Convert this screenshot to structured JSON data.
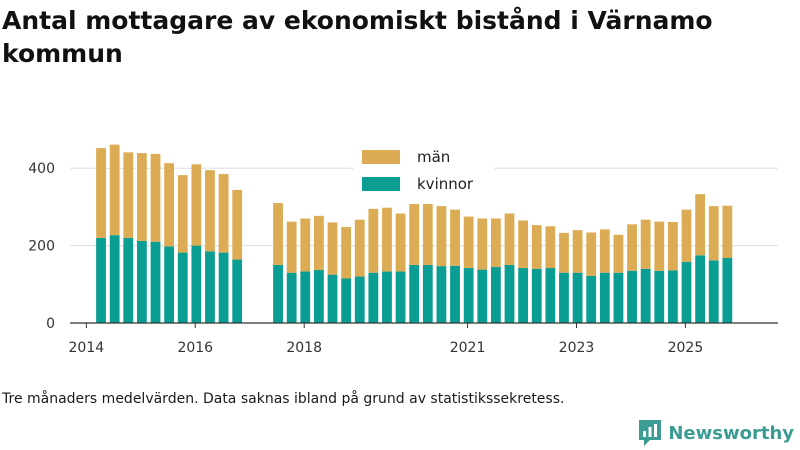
{
  "chart_data": {
    "type": "bar",
    "stacked": true,
    "title": "Antal mottagare av ekonomiskt bistånd i Värnamo kommun",
    "note": "Tre månaders medelvärden. Data saknas ibland på grund av statistikssekretess.",
    "brand": "Newsworthy",
    "ylim": [
      0,
      460
    ],
    "yticks": [
      0,
      200,
      400
    ],
    "xlim": [
      2013.7,
      2026.7
    ],
    "xticks": [
      {
        "value": 2014,
        "label": "2014"
      },
      {
        "value": 2016,
        "label": "2016"
      },
      {
        "value": 2018,
        "label": "2018"
      },
      {
        "value": 2021,
        "label": "2021"
      },
      {
        "value": 2023,
        "label": "2023"
      },
      {
        "value": 2025,
        "label": "2025"
      }
    ],
    "legend": [
      {
        "name": "män",
        "color": "#dcac55"
      },
      {
        "name": "kvinnor",
        "color": "#0a9d93"
      }
    ],
    "series": [
      {
        "name": "kvinnor",
        "color": "#0a9d93",
        "values": [
          220,
          227,
          220,
          212,
          210,
          198,
          182,
          200,
          185,
          182,
          164,
          null,
          null,
          150,
          130,
          133,
          137,
          125,
          115,
          120,
          130,
          133,
          133,
          150,
          150,
          147,
          148,
          142,
          138,
          145,
          150,
          142,
          140,
          142,
          130,
          130,
          122,
          130,
          130,
          135,
          140,
          135,
          136,
          158,
          175,
          162,
          168
        ]
      },
      {
        "name": "män",
        "color": "#dcac55",
        "values": [
          232,
          234,
          221,
          227,
          227,
          215,
          200,
          210,
          210,
          203,
          180,
          null,
          null,
          160,
          132,
          137,
          140,
          135,
          133,
          147,
          165,
          165,
          150,
          163,
          160,
          155,
          145,
          133,
          132,
          125,
          133,
          123,
          113,
          108,
          103,
          110,
          112,
          112,
          98,
          120,
          127,
          127,
          125,
          135,
          158,
          140,
          135
        ]
      }
    ]
  }
}
